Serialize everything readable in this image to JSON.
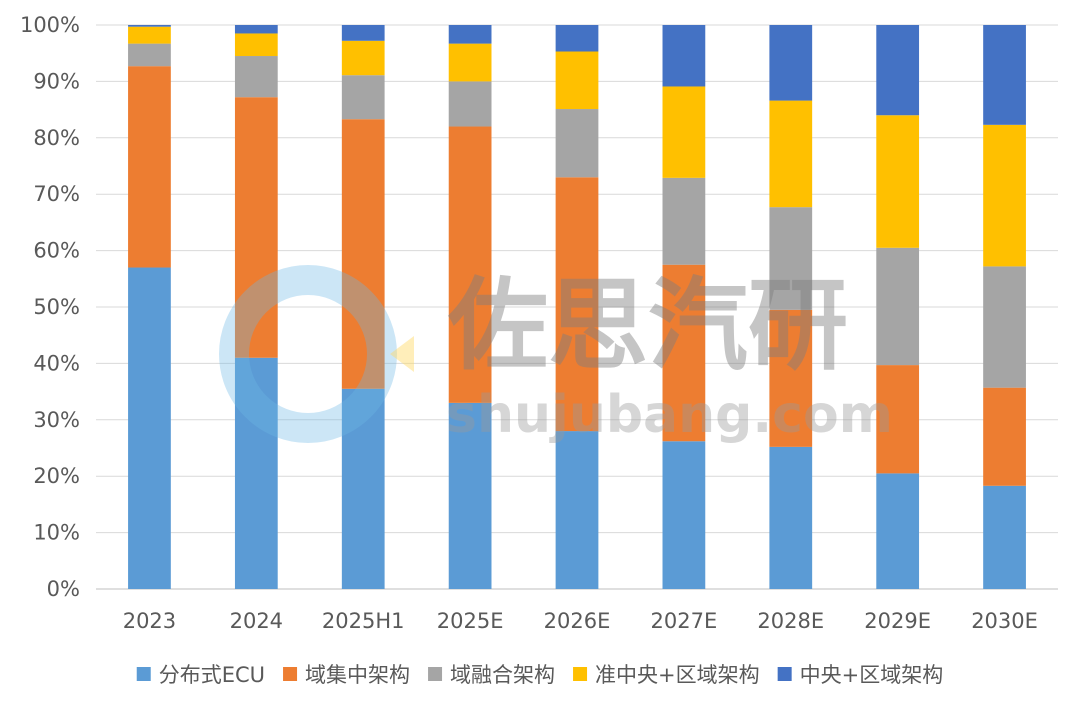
{
  "chart_data": {
    "type": "bar",
    "stacked": true,
    "percent": true,
    "categories": [
      "2023",
      "2024",
      "2025H1",
      "2025E",
      "2026E",
      "2027E",
      "2028E",
      "2029E",
      "2030E"
    ],
    "series": [
      {
        "name": "分布式ECU",
        "color": "#5b9bd5",
        "values": [
          57.0,
          41.0,
          35.5,
          33.0,
          28.0,
          26.2,
          25.2,
          20.5,
          18.3
        ]
      },
      {
        "name": "域集中架构",
        "color": "#ed7d31",
        "values": [
          35.7,
          46.2,
          47.8,
          49.0,
          45.0,
          31.3,
          24.3,
          19.2,
          17.4
        ]
      },
      {
        "name": "域融合架构",
        "color": "#a5a5a5",
        "values": [
          4.0,
          7.3,
          7.8,
          8.0,
          12.1,
          15.4,
          18.2,
          20.8,
          21.5
        ]
      },
      {
        "name": "准中央+区域架构",
        "color": "#ffc000",
        "values": [
          3.0,
          4.0,
          6.1,
          6.7,
          10.2,
          16.2,
          18.9,
          23.5,
          25.1
        ]
      },
      {
        "name": "中央+区域架构",
        "color": "#4472c4",
        "values": [
          0.3,
          1.5,
          2.8,
          3.3,
          4.7,
          10.9,
          13.4,
          16.0,
          17.7
        ]
      }
    ],
    "ylim": [
      0,
      100
    ],
    "yticks": [
      "0%",
      "10%",
      "20%",
      "30%",
      "40%",
      "50%",
      "60%",
      "70%",
      "80%",
      "90%",
      "100%"
    ],
    "grid": true,
    "legend": "bottom",
    "title": "",
    "xlabel": "",
    "ylabel": ""
  },
  "watermark": {
    "cn": "佐思汽研",
    "en": "shujubang.com"
  }
}
